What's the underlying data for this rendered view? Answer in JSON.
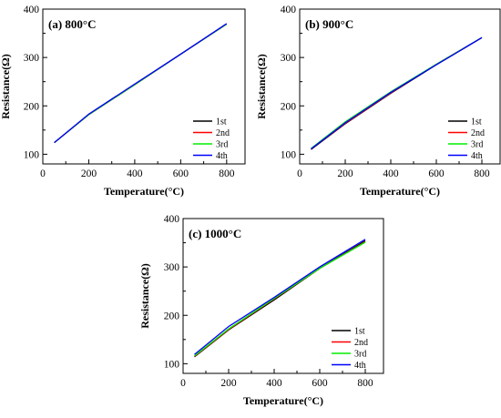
{
  "chart_data": [
    {
      "type": "line",
      "panel_label": "(a) 800°C",
      "xlabel": "Temperature(°C)",
      "ylabel": "Resistance(Ω)",
      "xlim": [
        0,
        880
      ],
      "ylim": [
        80,
        400
      ],
      "xticks": [
        "0",
        "200",
        "400",
        "600",
        "800"
      ],
      "yticks": [
        "100",
        "200",
        "300",
        "400"
      ],
      "legend_position": "bottom-right",
      "series": [
        {
          "name": "1st",
          "color": "#000000",
          "x": [
            50,
            200,
            400,
            600,
            800
          ],
          "y": [
            124,
            182,
            244,
            307,
            369
          ]
        },
        {
          "name": "2nd",
          "color": "#ff0000",
          "x": [
            50,
            200,
            400,
            600,
            800
          ],
          "y": [
            124,
            182,
            244,
            307,
            369
          ]
        },
        {
          "name": "3rd",
          "color": "#00ee00",
          "x": [
            50,
            200,
            400,
            600,
            800
          ],
          "y": [
            124,
            182,
            244,
            307,
            369
          ]
        },
        {
          "name": "4th",
          "color": "#0000ff",
          "x": [
            50,
            200,
            400,
            600,
            800
          ],
          "y": [
            124,
            183,
            245,
            307,
            370
          ]
        }
      ]
    },
    {
      "type": "line",
      "panel_label": "(b) 900°C",
      "xlabel": "Temperature(°C)",
      "ylabel": "Resistance(Ω)",
      "xlim": [
        0,
        880
      ],
      "ylim": [
        80,
        400
      ],
      "xticks": [
        "0",
        "200",
        "400",
        "600",
        "800"
      ],
      "yticks": [
        "100",
        "200",
        "300",
        "400"
      ],
      "legend_position": "bottom-right",
      "series": [
        {
          "name": "1st",
          "color": "#000000",
          "x": [
            50,
            200,
            400,
            600,
            800
          ],
          "y": [
            110,
            163,
            226,
            285,
            341
          ]
        },
        {
          "name": "2nd",
          "color": "#ff0000",
          "x": [
            50,
            200,
            400,
            600,
            800
          ],
          "y": [
            111,
            164,
            227,
            286,
            341
          ]
        },
        {
          "name": "3rd",
          "color": "#00ee00",
          "x": [
            50,
            200,
            400,
            600,
            800
          ],
          "y": [
            112,
            167,
            229,
            286,
            341
          ]
        },
        {
          "name": "4th",
          "color": "#0000ff",
          "x": [
            50,
            200,
            400,
            600,
            800
          ],
          "y": [
            111,
            165,
            228,
            285,
            341
          ]
        }
      ]
    },
    {
      "type": "line",
      "panel_label": "(c) 1000°C",
      "xlabel": "Temperature(°C)",
      "ylabel": "Resistance(Ω)",
      "xlim": [
        0,
        880
      ],
      "ylim": [
        80,
        400
      ],
      "xticks": [
        "0",
        "200",
        "400",
        "600",
        "800"
      ],
      "yticks": [
        "100",
        "200",
        "300",
        "400"
      ],
      "legend_position": "bottom-right",
      "series": [
        {
          "name": "1st",
          "color": "#000000",
          "x": [
            50,
            200,
            400,
            600,
            800
          ],
          "y": [
            114,
            170,
            232,
            297,
            354
          ]
        },
        {
          "name": "2nd",
          "color": "#ff0000",
          "x": [
            50,
            200,
            400,
            600,
            800
          ],
          "y": [
            115,
            171,
            234,
            297,
            352
          ]
        },
        {
          "name": "3rd",
          "color": "#00ee00",
          "x": [
            50,
            200,
            400,
            600,
            800
          ],
          "y": [
            116,
            172,
            235,
            297,
            351
          ]
        },
        {
          "name": "4th",
          "color": "#0000ff",
          "x": [
            50,
            200,
            400,
            600,
            800
          ],
          "y": [
            119,
            177,
            237,
            300,
            357
          ]
        }
      ]
    }
  ]
}
